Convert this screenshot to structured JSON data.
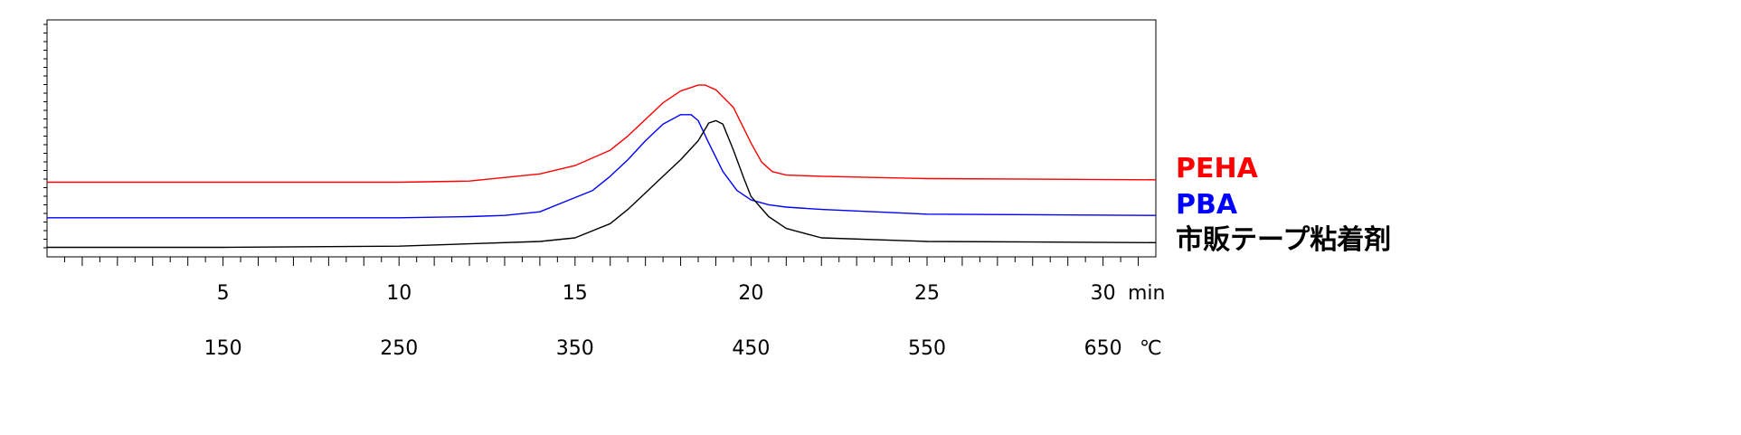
{
  "chart_data": {
    "type": "line",
    "title": "",
    "x_unit_label": "min",
    "x2_unit_label": "℃",
    "xlim": [
      0,
      31.5
    ],
    "x_ticks": [
      {
        "value": 5,
        "label": "5"
      },
      {
        "value": 10,
        "label": "10"
      },
      {
        "value": 15,
        "label": "15"
      },
      {
        "value": 20,
        "label": "20"
      },
      {
        "value": 25,
        "label": "25"
      },
      {
        "value": 30,
        "label": "30"
      }
    ],
    "x2_ticks": [
      {
        "value": 5,
        "label": "150"
      },
      {
        "value": 10,
        "label": "250"
      },
      {
        "value": 15,
        "label": "350"
      },
      {
        "value": 20,
        "label": "450"
      },
      {
        "value": 25,
        "label": "550"
      },
      {
        "value": 30,
        "label": "650"
      }
    ],
    "ylim": [
      0,
      100
    ],
    "grid": false,
    "legend_position": "right",
    "series": [
      {
        "name": "PEHA",
        "color": "#ff0000",
        "x": [
          0,
          5,
          10,
          12,
          14,
          15,
          16,
          16.5,
          17,
          17.5,
          18,
          18.5,
          18.7,
          19,
          19.5,
          20,
          20.3,
          20.6,
          21,
          22,
          25,
          31.5
        ],
        "y": [
          31.5,
          31.5,
          31.5,
          32.0,
          35.0,
          38.5,
          45.0,
          51.0,
          58.0,
          65.0,
          70.0,
          72.5,
          72.5,
          70.5,
          63.0,
          48.0,
          40.0,
          36.0,
          34.5,
          34.0,
          33.0,
          32.5
        ]
      },
      {
        "name": "PBA",
        "color": "#0000ff",
        "x": [
          0,
          5,
          10,
          12,
          13,
          14,
          15,
          15.5,
          16,
          16.5,
          17,
          17.5,
          18,
          18.3,
          18.5,
          18.8,
          19.2,
          19.6,
          20,
          20.5,
          21,
          22,
          25,
          31.5
        ],
        "y": [
          16.5,
          16.5,
          16.5,
          17.0,
          17.5,
          19.0,
          25.0,
          28.0,
          34.0,
          41.0,
          49.0,
          56.0,
          60.0,
          60.0,
          57.5,
          48.0,
          36.0,
          28.0,
          24.0,
          22.0,
          21.0,
          20.0,
          18.0,
          17.5
        ]
      },
      {
        "name": "市販テープ粘着剤",
        "color": "#000000",
        "x": [
          0,
          5,
          10,
          12,
          14,
          15,
          16,
          16.5,
          17,
          17.5,
          18,
          18.5,
          18.8,
          19.0,
          19.2,
          19.5,
          19.8,
          20,
          20.5,
          21,
          22,
          25,
          31.5
        ],
        "y": [
          4.0,
          4.0,
          4.5,
          5.5,
          6.5,
          8.0,
          14.0,
          20.0,
          27.0,
          34.0,
          41.0,
          49.0,
          56.5,
          57.5,
          56.0,
          45.0,
          33.0,
          25.5,
          17.0,
          12.0,
          8.0,
          6.5,
          6.0
        ]
      }
    ]
  }
}
